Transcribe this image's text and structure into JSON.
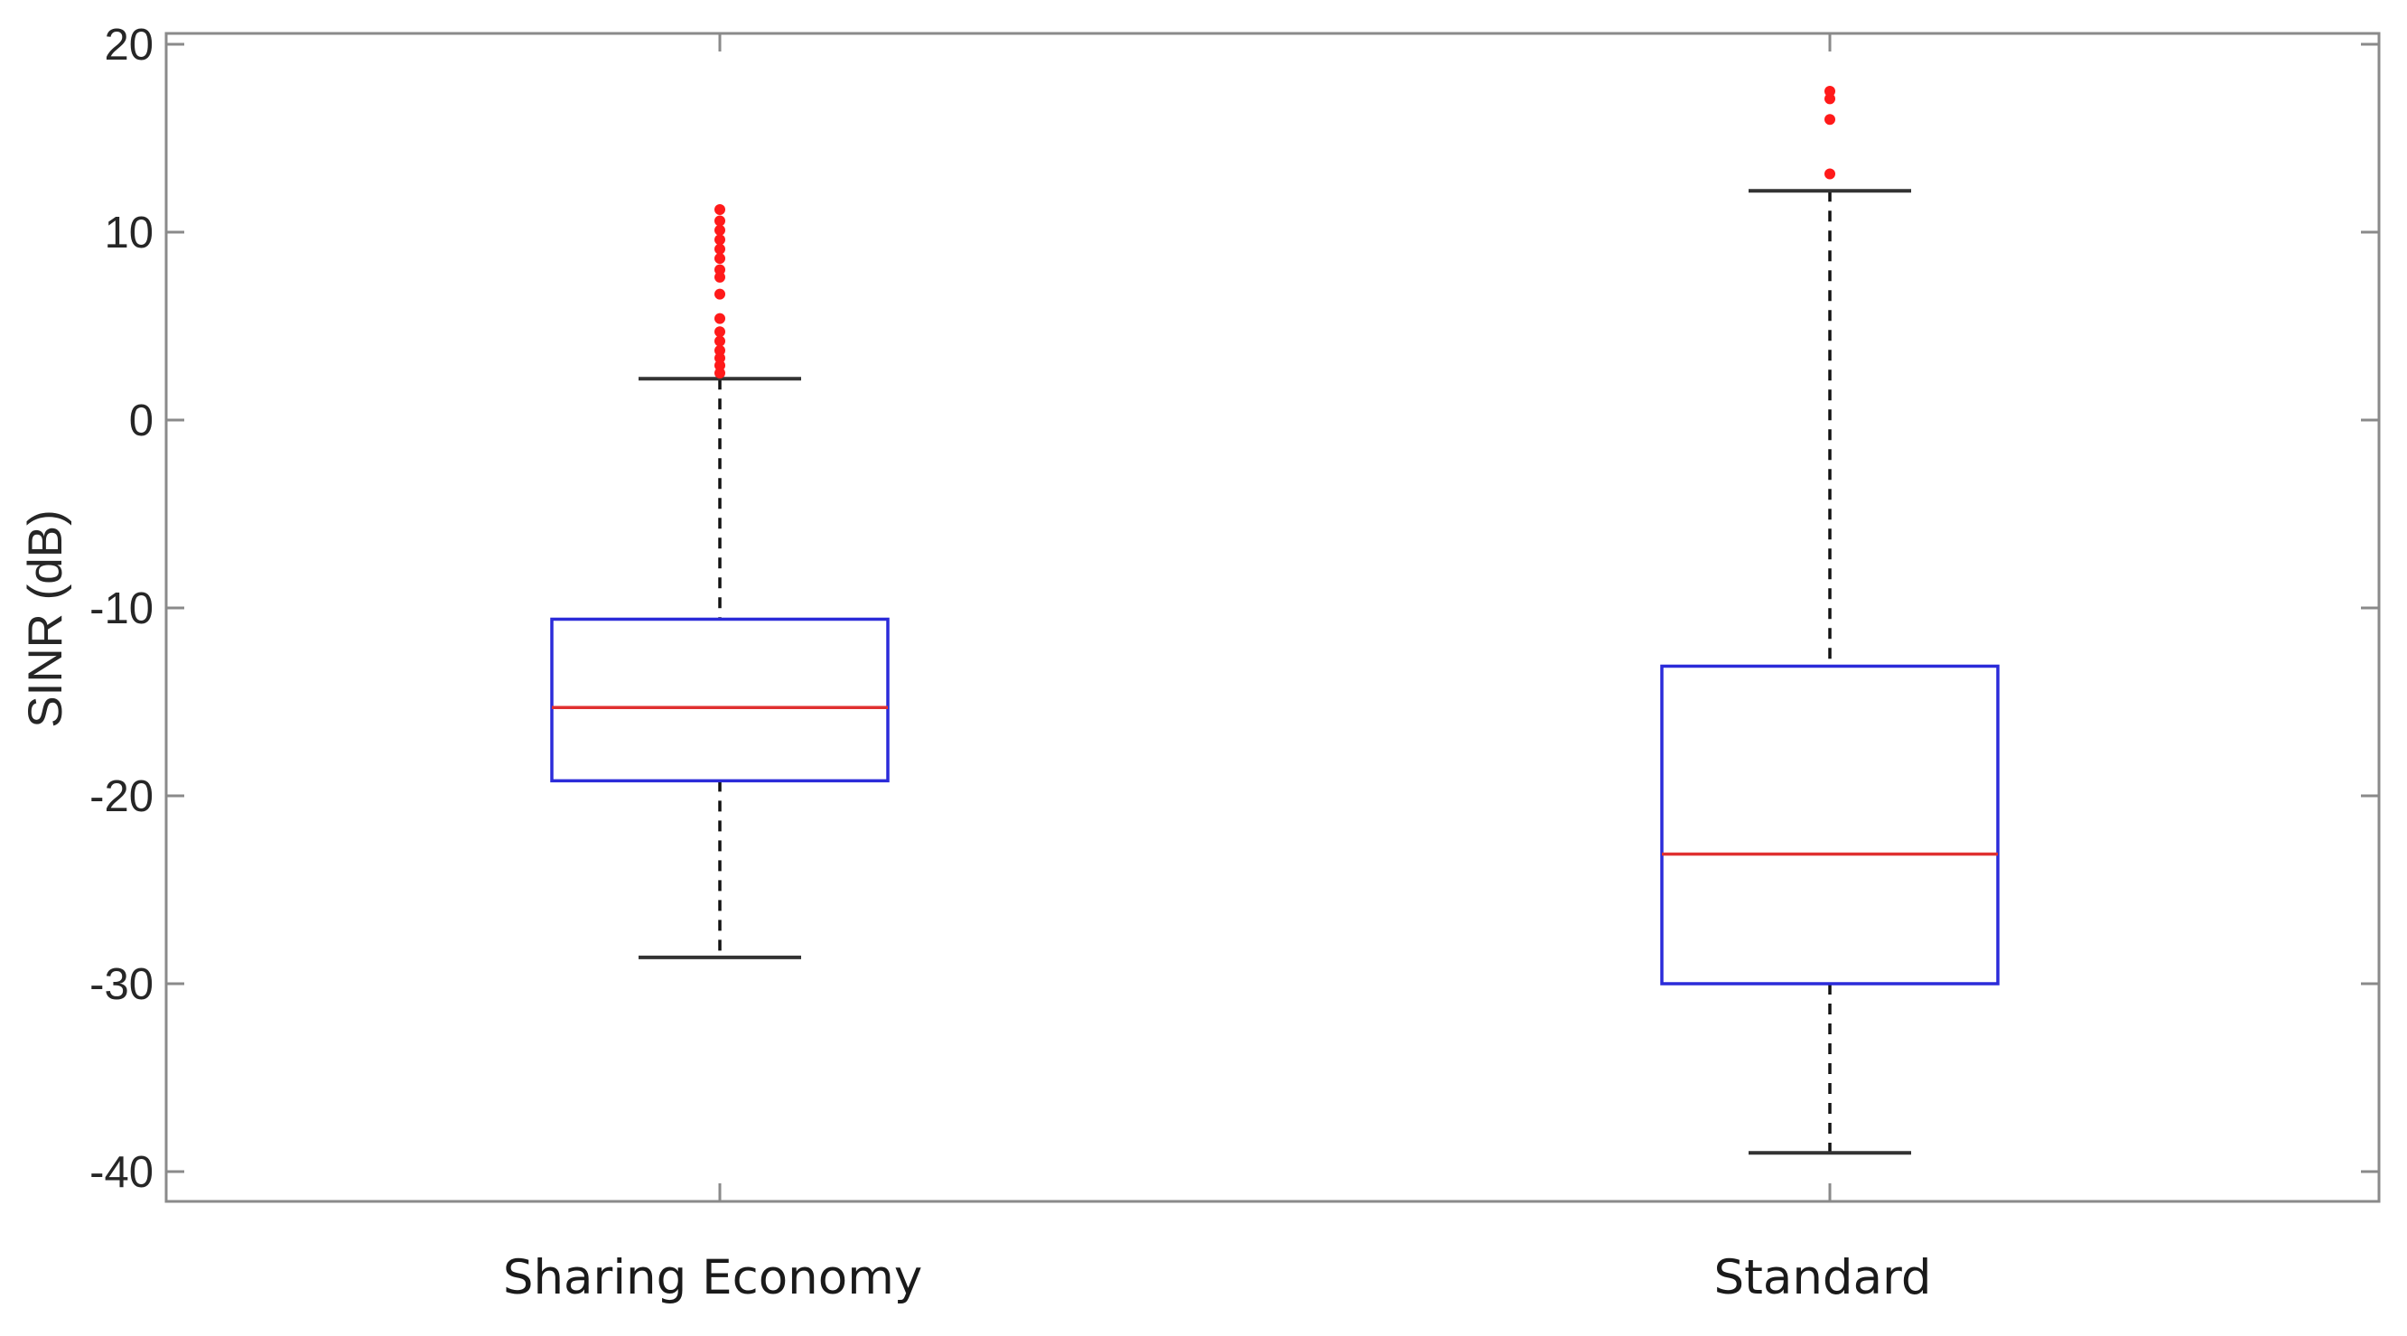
{
  "chart_data": {
    "type": "box",
    "ylabel": "SINR (dB)",
    "xlabel": "",
    "title": "",
    "ylim": [
      -42,
      20
    ],
    "yticks": [
      20,
      10,
      0,
      -10,
      -20,
      -30,
      -40
    ],
    "ytick_labels": [
      "20",
      "10",
      "0",
      "-10",
      "-20",
      "-30",
      "-40"
    ],
    "grid": false,
    "categories": [
      "Sharing Economy",
      "Standard"
    ],
    "boxes": [
      {
        "category": "Sharing Economy",
        "whisker_low": -28.6,
        "q1": -19.2,
        "median": -15.3,
        "q3": -10.6,
        "whisker_high": 2.2,
        "outliers": [
          2.5,
          2.9,
          3.3,
          3.7,
          4.2,
          4.7,
          5.4,
          6.7,
          7.6,
          8.0,
          8.6,
          9.1,
          9.6,
          10.1,
          10.6,
          11.2
        ]
      },
      {
        "category": "Standard",
        "whisker_low": -39.0,
        "q1": -30.0,
        "median": -23.1,
        "q3": -13.1,
        "whisker_high": 12.2,
        "outliers": [
          13.1,
          16.0,
          17.1,
          17.5
        ]
      }
    ],
    "colors": {
      "box": "#2b2bd9",
      "median": "#e03030",
      "outlier": "#ff1a1a",
      "whisker": "#111111",
      "axis": "#8a8a8a"
    }
  }
}
